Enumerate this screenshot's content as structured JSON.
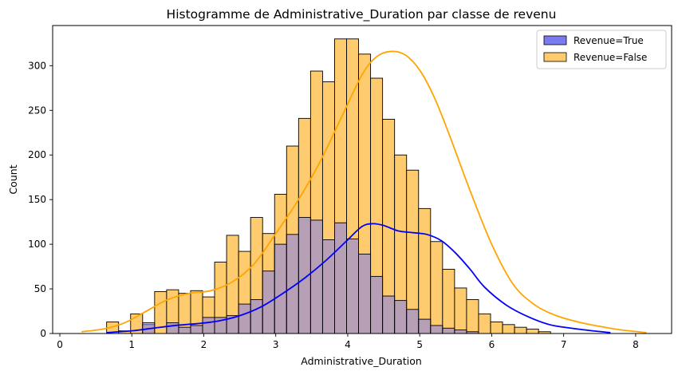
{
  "chart_data": {
    "type": "bar",
    "title": "Histogramme de Administrative_Duration par classe de revenu",
    "xlabel": "Administrative_Duration",
    "ylabel": "Count",
    "xlim": [
      -0.1,
      8.5
    ],
    "ylim": [
      0,
      345
    ],
    "xticks": [
      0,
      1,
      2,
      3,
      4,
      5,
      6,
      7,
      8
    ],
    "yticks": [
      0,
      50,
      100,
      150,
      200,
      250,
      300
    ],
    "bin_start": 0.65,
    "bin_width": 0.1667,
    "legend_position": "top-right",
    "grid": false,
    "series": [
      {
        "name": "Revenue=True",
        "color": "#0000ff",
        "fill": "#7b7bf0",
        "values": [
          0,
          0,
          0,
          12,
          0,
          12,
          7,
          9,
          18,
          18,
          20,
          33,
          38,
          70,
          100,
          111,
          130,
          127,
          105,
          124,
          106,
          89,
          64,
          42,
          37,
          27,
          16,
          9,
          6,
          4,
          2,
          0,
          0
        ],
        "kde_x": [
          0.65,
          1.0,
          1.3,
          1.6,
          1.9,
          2.2,
          2.5,
          2.8,
          3.1,
          3.4,
          3.7,
          4.0,
          4.2,
          4.35,
          4.5,
          4.7,
          4.9,
          5.1,
          5.3,
          5.5,
          5.7,
          5.9,
          6.2,
          6.5,
          6.8,
          7.1,
          7.4,
          7.65
        ],
        "kde_y": [
          1,
          3,
          6,
          9,
          11,
          14,
          20,
          30,
          45,
          62,
          82,
          105,
          120,
          123,
          121,
          115,
          113,
          111,
          104,
          90,
          72,
          52,
          32,
          19,
          10,
          6,
          3,
          1
        ]
      },
      {
        "name": "Revenue=False",
        "color": "#ffa500",
        "fill": "#fecb6e",
        "values": [
          13,
          3,
          22,
          10,
          47,
          49,
          45,
          48,
          41,
          80,
          110,
          92,
          130,
          112,
          156,
          210,
          241,
          294,
          282,
          330,
          330,
          313,
          286,
          240,
          200,
          183,
          140,
          103,
          72,
          51,
          38,
          22,
          13,
          10,
          7,
          5,
          2
        ],
        "kde_x": [
          0.3,
          0.6,
          0.9,
          1.2,
          1.5,
          1.8,
          2.1,
          2.4,
          2.7,
          3.0,
          3.3,
          3.6,
          3.9,
          4.2,
          4.4,
          4.6,
          4.8,
          5.0,
          5.2,
          5.4,
          5.7,
          6.0,
          6.3,
          6.6,
          6.9,
          7.2,
          7.5,
          7.8,
          8.15
        ],
        "kde_y": [
          2,
          5,
          12,
          25,
          38,
          45,
          48,
          58,
          78,
          112,
          148,
          190,
          240,
          290,
          310,
          316,
          312,
          295,
          265,
          225,
          160,
          100,
          55,
          32,
          20,
          13,
          8,
          4,
          1
        ]
      }
    ]
  }
}
